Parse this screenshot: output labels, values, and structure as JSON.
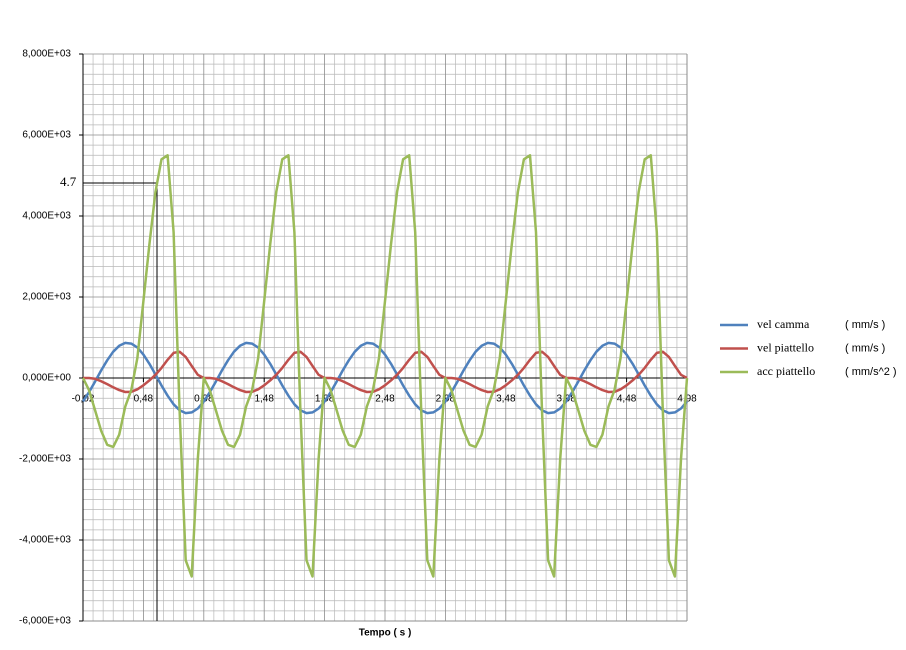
{
  "chart_data": {
    "type": "line",
    "x_label": "Tempo ( s )",
    "annotation": "4.7",
    "x": [
      -0.02,
      0.03,
      0.08,
      0.13,
      0.18,
      0.23,
      0.28,
      0.33,
      0.38,
      0.43,
      0.48,
      0.53,
      0.58,
      0.63,
      0.68,
      0.73,
      0.78,
      0.83,
      0.88,
      0.93,
      0.98,
      1.03,
      1.08,
      1.13,
      1.18,
      1.23,
      1.28,
      1.33,
      1.38,
      1.43,
      1.48,
      1.53,
      1.58,
      1.63,
      1.68,
      1.73,
      1.78,
      1.83,
      1.88,
      1.93,
      1.98,
      2.03,
      2.08,
      2.13,
      2.18,
      2.23,
      2.28,
      2.33,
      2.38,
      2.43,
      2.48,
      2.53,
      2.58,
      2.63,
      2.68,
      2.73,
      2.78,
      2.83,
      2.88,
      2.93,
      2.98,
      3.03,
      3.08,
      3.13,
      3.18,
      3.23,
      3.28,
      3.33,
      3.38,
      3.43,
      3.48,
      3.53,
      3.58,
      3.63,
      3.68,
      3.73,
      3.78,
      3.83,
      3.88,
      3.93,
      3.98,
      4.03,
      4.08,
      4.13,
      4.18,
      4.23,
      4.28,
      4.33,
      4.38,
      4.43,
      4.48,
      4.53,
      4.58,
      4.63,
      4.68,
      4.73,
      4.78,
      4.83,
      4.88,
      4.93,
      4.98
    ],
    "series": [
      {
        "name": "vel camma",
        "unit": "( mm/s )",
        "color": "#4f81bd",
        "values": [
          -579,
          -351,
          -87,
          184,
          438,
          649,
          796,
          866,
          850,
          752,
          579,
          351,
          87,
          -184,
          -438,
          -649,
          -796,
          -866,
          -850,
          -752,
          -579,
          -351,
          -87,
          184,
          438,
          649,
          796,
          866,
          850,
          752,
          579,
          351,
          87,
          -184,
          -438,
          -649,
          -796,
          -866,
          -850,
          -752,
          -579,
          -351,
          -87,
          184,
          438,
          649,
          796,
          866,
          850,
          752,
          579,
          351,
          87,
          -184,
          -438,
          -649,
          -796,
          -866,
          -850,
          -752,
          -579,
          -351,
          -87,
          184,
          438,
          649,
          796,
          866,
          850,
          752,
          579,
          351,
          87,
          -184,
          -438,
          -649,
          -796,
          -866,
          -850,
          -752,
          -579,
          -351,
          -87,
          184,
          438,
          649,
          796,
          866,
          850,
          752,
          579,
          351,
          87,
          -184,
          -438,
          -649,
          -796,
          -866,
          -850,
          -752,
          -579
        ]
      },
      {
        "name": "vel piattello",
        "unit": "( mm/s )",
        "color": "#c0504d",
        "values": [
          0,
          0,
          -20,
          -80,
          -150,
          -230,
          -300,
          -345,
          -340,
          -280,
          -180,
          -60,
          80,
          250,
          450,
          620,
          650,
          520,
          300,
          80,
          0,
          0,
          -20,
          -80,
          -150,
          -230,
          -300,
          -345,
          -340,
          -280,
          -180,
          -60,
          80,
          250,
          450,
          620,
          650,
          520,
          300,
          80,
          0,
          0,
          -20,
          -80,
          -150,
          -230,
          -300,
          -345,
          -340,
          -280,
          -180,
          -60,
          80,
          250,
          450,
          620,
          650,
          520,
          300,
          80,
          0,
          0,
          -20,
          -80,
          -150,
          -230,
          -300,
          -345,
          -340,
          -280,
          -180,
          -60,
          80,
          250,
          450,
          620,
          650,
          520,
          300,
          80,
          0,
          0,
          -20,
          -80,
          -150,
          -230,
          -300,
          -345,
          -340,
          -280,
          -180,
          -60,
          80,
          250,
          450,
          620,
          650,
          520,
          300,
          80,
          0
        ]
      },
      {
        "name": "acc piattello",
        "unit": "( mm/s^2 )",
        "color": "#9bbb59",
        "values": [
          0,
          -300,
          -800,
          -1300,
          -1650,
          -1700,
          -1400,
          -700,
          -300,
          500,
          1900,
          3300,
          4600,
          5400,
          5500,
          3600,
          -800,
          -4500,
          -4900,
          -2000,
          0,
          -300,
          -800,
          -1300,
          -1650,
          -1700,
          -1400,
          -700,
          -300,
          500,
          1900,
          3300,
          4600,
          5400,
          5500,
          3600,
          -800,
          -4500,
          -4900,
          -2000,
          0,
          -300,
          -800,
          -1300,
          -1650,
          -1700,
          -1400,
          -700,
          -300,
          500,
          1900,
          3300,
          4600,
          5400,
          5500,
          3600,
          -800,
          -4500,
          -4900,
          -2000,
          0,
          -300,
          -800,
          -1300,
          -1650,
          -1700,
          -1400,
          -700,
          -300,
          500,
          1900,
          3300,
          4600,
          5400,
          5500,
          3600,
          -800,
          -4500,
          -4900,
          -2000,
          0,
          -300,
          -800,
          -1300,
          -1650,
          -1700,
          -1400,
          -700,
          -300,
          500,
          1900,
          3300,
          4600,
          5400,
          5500,
          3600,
          -800,
          -4500,
          -4900,
          -2000,
          0
        ]
      }
    ],
    "xlim": [
      -0.02,
      4.98
    ],
    "xticks": [
      {
        "value": -0.02,
        "label": "-0,02"
      },
      {
        "value": 0.48,
        "label": "0,48"
      },
      {
        "value": 0.98,
        "label": "0,98"
      },
      {
        "value": 1.48,
        "label": "1,48"
      },
      {
        "value": 1.98,
        "label": "1,98"
      },
      {
        "value": 2.48,
        "label": "2,48"
      },
      {
        "value": 2.98,
        "label": "2,98"
      },
      {
        "value": 3.48,
        "label": "3,48"
      },
      {
        "value": 3.98,
        "label": "3,98"
      },
      {
        "value": 4.48,
        "label": "4,48"
      },
      {
        "value": 4.98,
        "label": "4,98"
      }
    ],
    "ylim": [
      -6000,
      8000
    ],
    "yticks": [
      {
        "value": -6000,
        "label": "-6,000E+03"
      },
      {
        "value": -4000,
        "label": "-4,000E+03"
      },
      {
        "value": -2000,
        "label": "-2,000E+03"
      },
      {
        "value": 0,
        "label": "0,000E+00"
      },
      {
        "value": 2000,
        "label": "2,000E+03"
      },
      {
        "value": 4000,
        "label": "4,000E+03"
      },
      {
        "value": 6000,
        "label": "6,000E+03"
      },
      {
        "value": 8000,
        "label": "8,000E+03"
      }
    ],
    "grid": true,
    "legend": "right"
  }
}
